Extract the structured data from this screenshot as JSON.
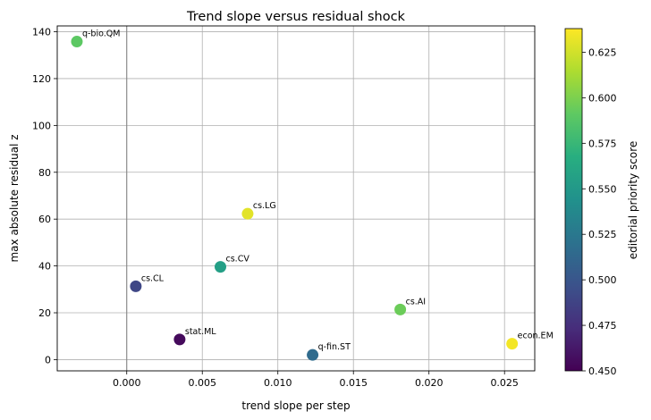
{
  "chart_data": {
    "type": "scatter",
    "title": "Trend slope versus residual shock",
    "xlabel": "trend slope per step",
    "ylabel": "max absolute residual z",
    "xlim": [
      -0.0046,
      0.027
    ],
    "ylim": [
      -4.8,
      142.5
    ],
    "xticks": [
      0.0,
      0.005,
      0.01,
      0.015,
      0.02,
      0.025
    ],
    "xtick_labels": [
      "0.000",
      "0.005",
      "0.010",
      "0.015",
      "0.020",
      "0.025"
    ],
    "yticks": [
      0,
      20,
      40,
      60,
      80,
      100,
      120,
      140
    ],
    "ytick_labels": [
      "0",
      "20",
      "40",
      "60",
      "80",
      "100",
      "120",
      "140"
    ],
    "grid": true,
    "reference_line_x": 0,
    "points": [
      {
        "label": "q-bio.QM",
        "x": -0.0033,
        "y": 135.8,
        "score": 0.59
      },
      {
        "label": "cs.LG",
        "x": 0.008,
        "y": 62.3,
        "score": 0.63
      },
      {
        "label": "cs.CV",
        "x": 0.0062,
        "y": 39.6,
        "score": 0.555
      },
      {
        "label": "cs.CL",
        "x": 0.0006,
        "y": 31.3,
        "score": 0.49
      },
      {
        "label": "stat.ML",
        "x": 0.0035,
        "y": 8.6,
        "score": 0.455
      },
      {
        "label": "q-fin.ST",
        "x": 0.0123,
        "y": 2.0,
        "score": 0.515
      },
      {
        "label": "cs.AI",
        "x": 0.0181,
        "y": 21.4,
        "score": 0.595
      },
      {
        "label": "econ.EM",
        "x": 0.0255,
        "y": 6.8,
        "score": 0.635
      }
    ],
    "colorbar": {
      "label": "editorial priority score",
      "colormap": "viridis",
      "range": [
        0.45,
        0.638
      ],
      "ticks": [
        0.45,
        0.475,
        0.5,
        0.525,
        0.55,
        0.575,
        0.6,
        0.625
      ],
      "tick_labels": [
        "0.450",
        "0.475",
        "0.500",
        "0.525",
        "0.550",
        "0.575",
        "0.600",
        "0.625"
      ]
    }
  }
}
